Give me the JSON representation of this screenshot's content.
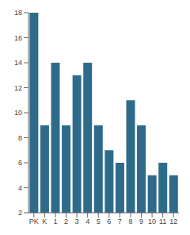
{
  "chart_data": {
    "type": "bar",
    "categories": [
      "PK",
      "K",
      "1",
      "2",
      "3",
      "4",
      "5",
      "6",
      "7",
      "8",
      "9",
      "10",
      "11",
      "12"
    ],
    "values": [
      18,
      9,
      14,
      9,
      13,
      14,
      9,
      7,
      6,
      11,
      9,
      5,
      6,
      5
    ],
    "color": "#2e6b8a",
    "ylim": [
      2,
      18
    ],
    "yticks": [
      2,
      4,
      6,
      8,
      10,
      12,
      14,
      16,
      18
    ],
    "grid": false
  }
}
